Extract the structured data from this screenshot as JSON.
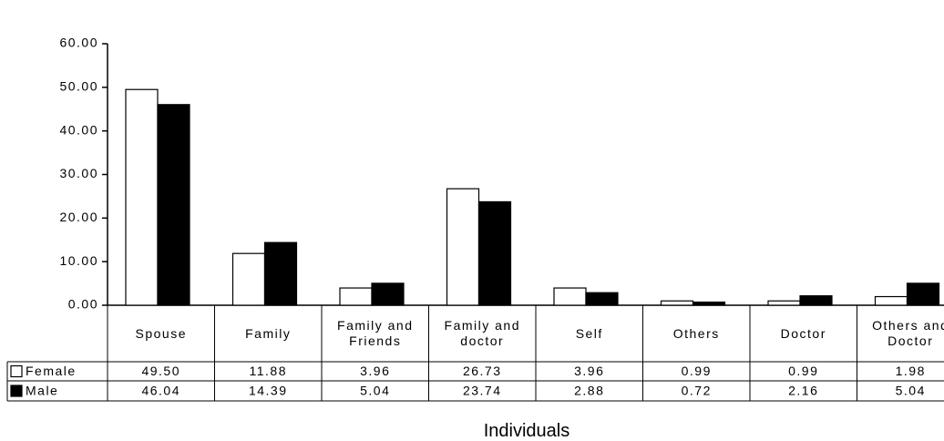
{
  "chart_data": {
    "type": "bar",
    "x_label": "Individuals",
    "categories": [
      "Spouse",
      "Family",
      "Family and Friends",
      "Family and doctor",
      "Self",
      "Others",
      "Doctor",
      "Others and Doctor"
    ],
    "series": [
      {
        "name": "Female",
        "color": "#ffffff",
        "values": [
          49.5,
          11.88,
          3.96,
          26.73,
          3.96,
          0.99,
          0.99,
          1.98
        ],
        "value_labels": [
          "49.50",
          "11.88",
          "3.96",
          "26.73",
          "3.96",
          "0.99",
          "0.99",
          "1.98"
        ]
      },
      {
        "name": "Male",
        "color": "#000000",
        "values": [
          46.04,
          14.39,
          5.04,
          23.74,
          2.88,
          0.72,
          2.16,
          5.04
        ],
        "value_labels": [
          "46.04",
          "14.39",
          "5.04",
          "23.74",
          "2.88",
          "0.72",
          "2.16",
          "5.04"
        ]
      }
    ],
    "ylim": [
      0,
      60
    ],
    "yticks": [
      {
        "value": 0,
        "label": "0.00"
      },
      {
        "value": 10,
        "label": "10.00"
      },
      {
        "value": 20,
        "label": "20.00"
      },
      {
        "value": 30,
        "label": "30.00"
      },
      {
        "value": 40,
        "label": "40.00"
      },
      {
        "value": 50,
        "label": "50.00"
      },
      {
        "value": 60,
        "label": "60.00"
      }
    ],
    "grid": false
  }
}
